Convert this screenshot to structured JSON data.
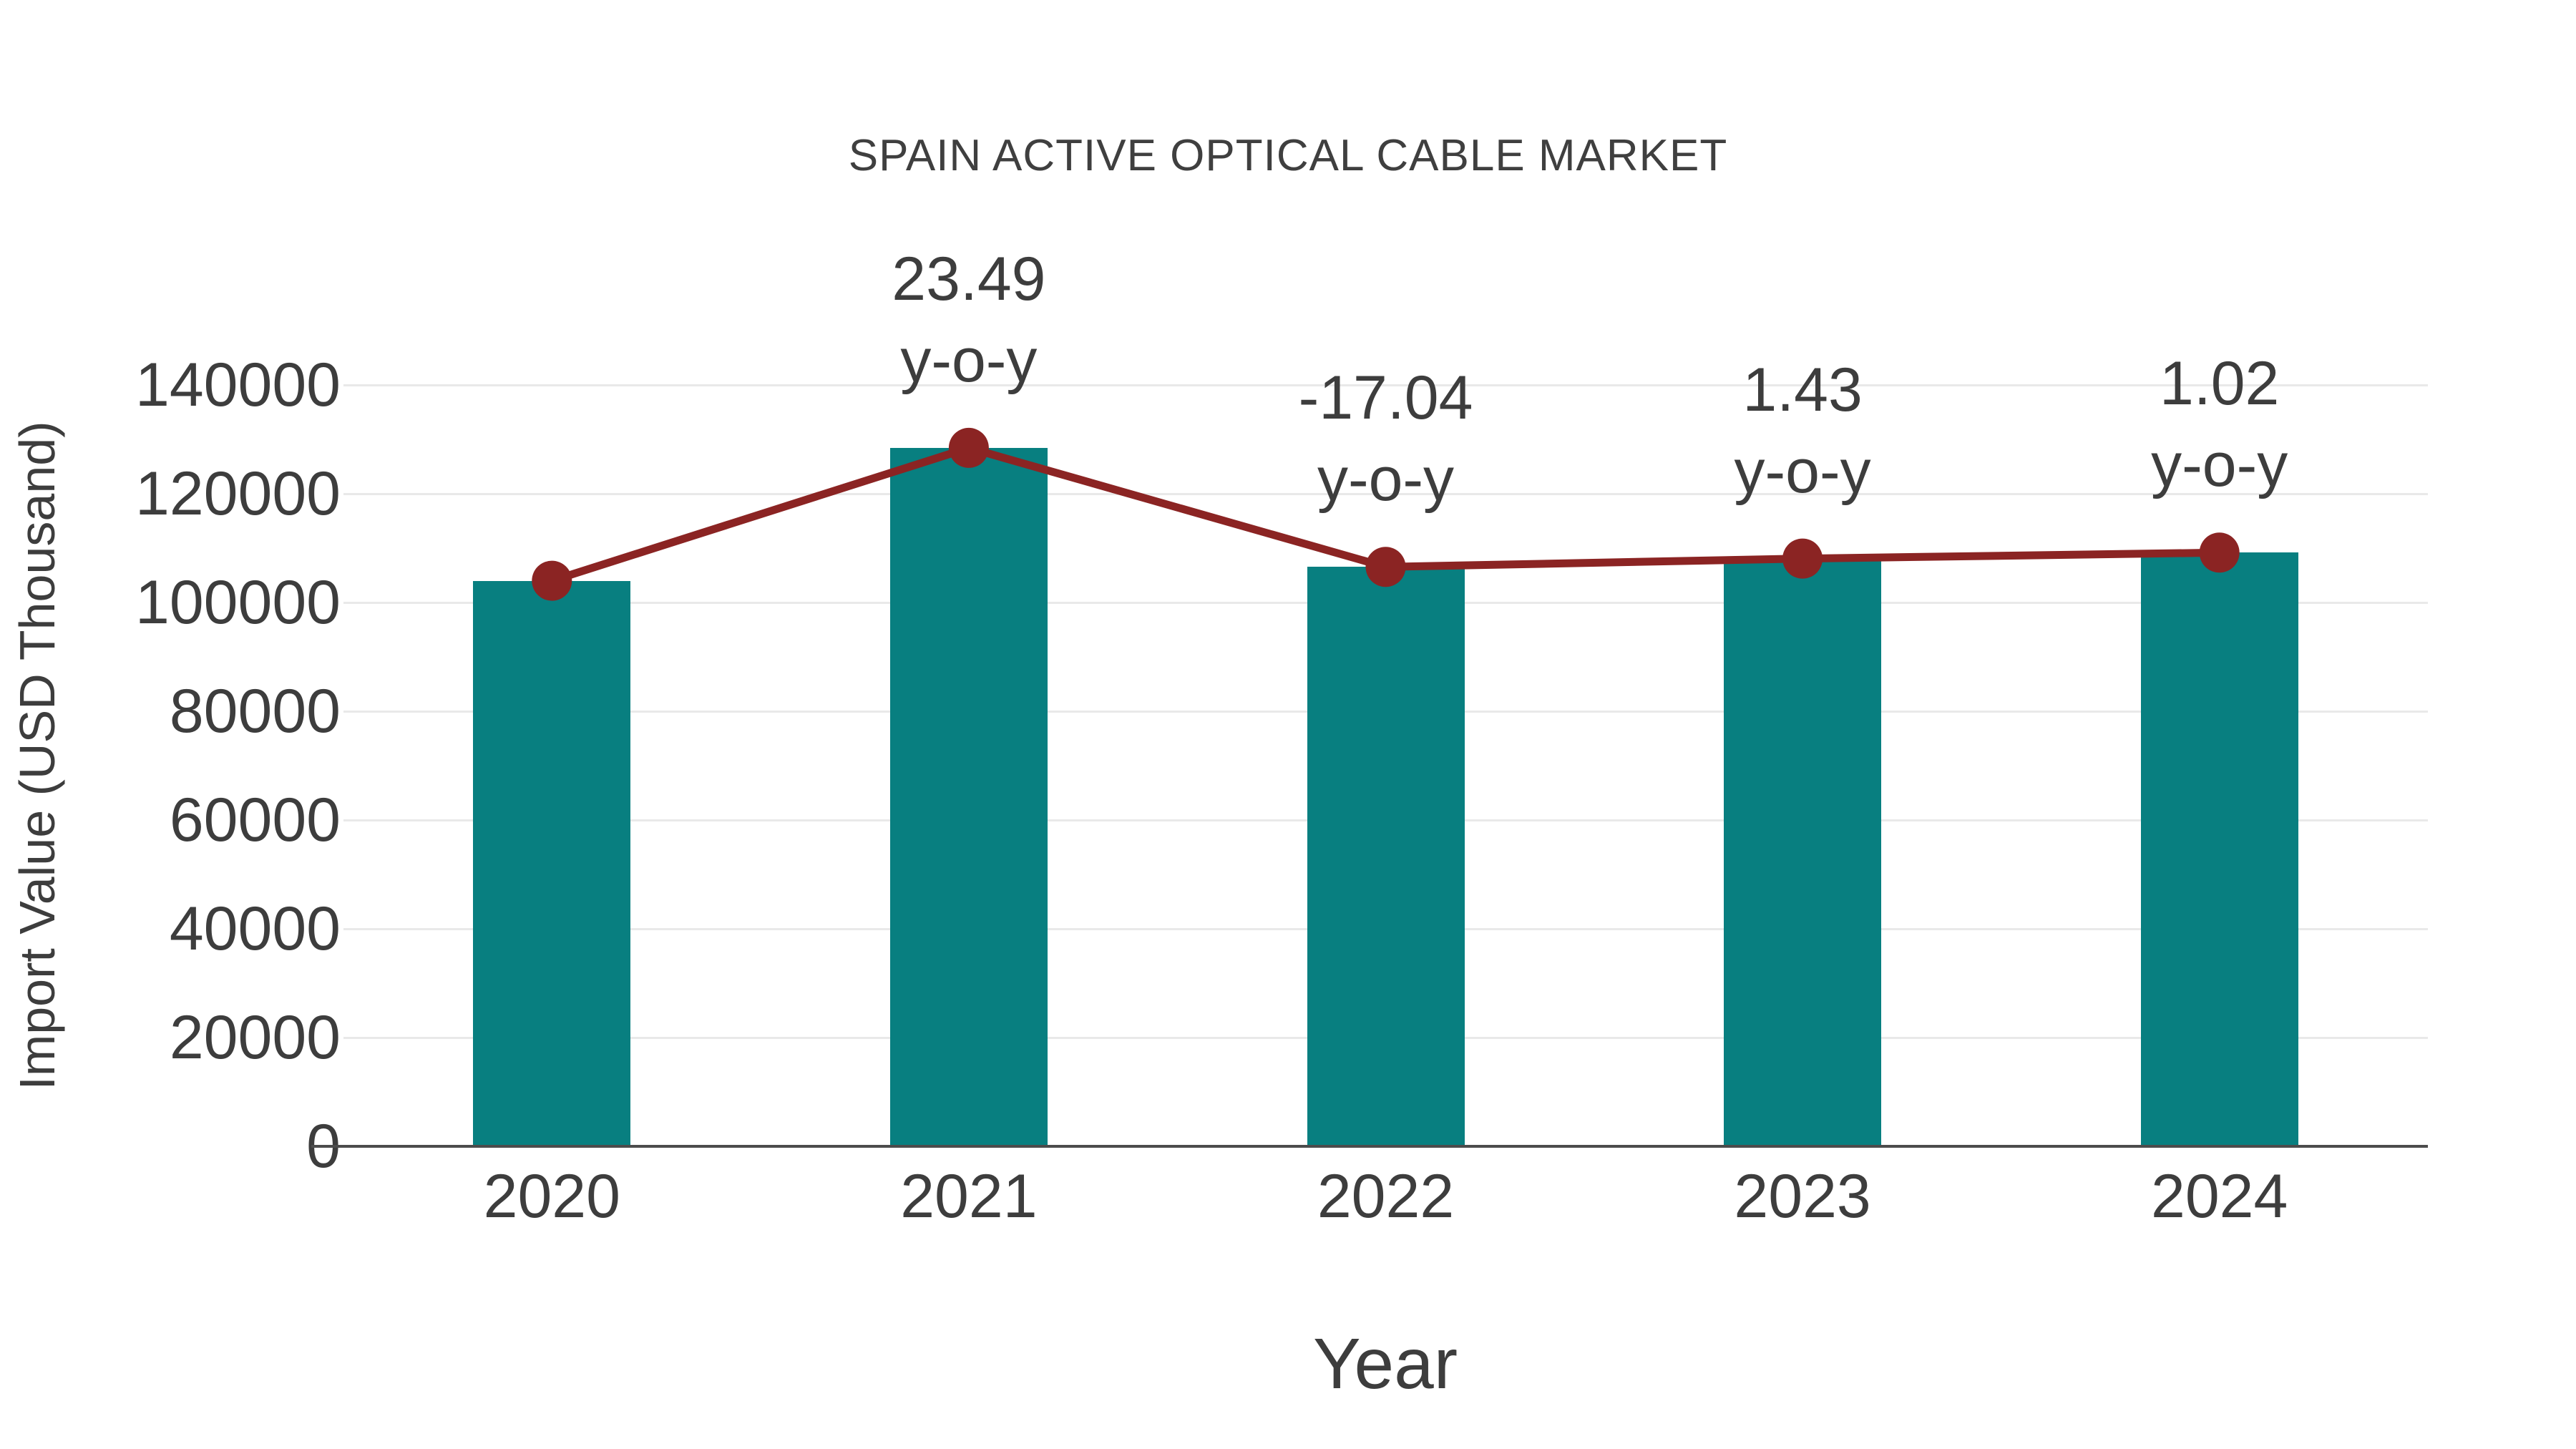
{
  "title": "SPAIN ACTIVE OPTICAL CABLE MARKET",
  "chart_data": {
    "type": "bar",
    "title": "SPAIN ACTIVE OPTICAL CABLE MARKET",
    "categories": [
      "2020",
      "2021",
      "2022",
      "2023",
      "2024"
    ],
    "series": [
      {
        "name": "Import Value",
        "type": "bar",
        "color": "#087f80",
        "values": [
          104000,
          128430,
          106545,
          108069,
          109171
        ]
      },
      {
        "name": "y-o-y change (%)",
        "type": "line",
        "color": "#8b2423",
        "values": [
          null,
          23.49,
          -17.04,
          1.43,
          1.02
        ]
      }
    ],
    "annotations": [
      {
        "category": "2021",
        "lines": [
          "23.49",
          "y-o-y"
        ]
      },
      {
        "category": "2022",
        "lines": [
          "-17.04",
          "y-o-y"
        ]
      },
      {
        "category": "2023",
        "lines": [
          "1.43",
          "y-o-y"
        ]
      },
      {
        "category": "2024",
        "lines": [
          "1.02",
          "y-o-y"
        ]
      }
    ],
    "xlabel": "Year",
    "ylabel": "Import Value (USD Thousand)",
    "ylim": [
      0,
      140000
    ],
    "yticks": [
      0,
      20000,
      40000,
      60000,
      80000,
      100000,
      120000,
      140000
    ],
    "grid": "horizontal",
    "legend": "none"
  },
  "colors": {
    "bar": "#087f80",
    "line": "#8b2423",
    "grid": "#e9e9e9",
    "axis": "#4c4c4c",
    "text": "#3d3d3d",
    "background": "#ffffff"
  }
}
